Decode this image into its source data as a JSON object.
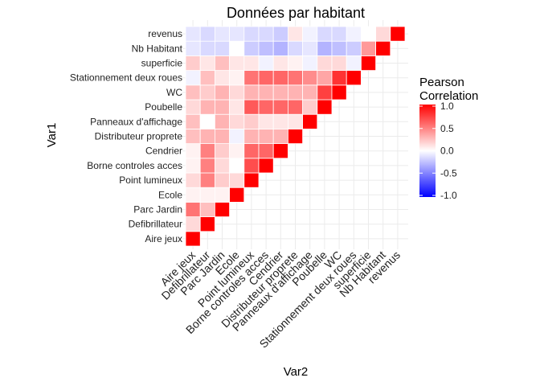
{
  "chart_data": {
    "type": "heatmap",
    "title": "Données par habitant",
    "xlabel": "Var2",
    "ylabel": "Var1",
    "variables": [
      "Aire jeux",
      "Defibrillateur",
      "Parc Jardin",
      "Ecole",
      "Point lumineux",
      "Borne controles acces",
      "Cendrier",
      "Distributeur proprete",
      "Panneaux d'affichage",
      "Poubelle",
      "WC",
      "Stationnement deux roues",
      "superficie",
      "Nb Habitant",
      "revenus"
    ],
    "legend_title": [
      "Pearson",
      "Correlation"
    ],
    "legend_ticks": [
      1.0,
      0.5,
      0.0,
      -0.5,
      -1.0
    ],
    "legend_tick_labels": [
      "1.0",
      "0.5",
      "0.0",
      "-0.5",
      "-1.0"
    ],
    "color_scale": {
      "low": "#0000ff",
      "mid": "#ffffff",
      "high": "#ff0000",
      "limits": [
        -1,
        1
      ]
    },
    "grid": true,
    "matrix": [
      [
        1.0,
        0.15,
        0.55,
        0.05,
        0.15,
        0.05,
        0.05,
        0.25,
        0.25,
        0.15,
        0.25,
        -0.05,
        0.2,
        -0.1,
        -0.1
      ],
      [
        null,
        1.0,
        0.25,
        0.05,
        0.5,
        0.5,
        0.5,
        0.3,
        0.0,
        0.3,
        0.2,
        0.25,
        0.1,
        -0.15,
        -0.15
      ],
      [
        null,
        null,
        1.0,
        0.05,
        0.2,
        0.15,
        0.2,
        0.3,
        0.3,
        0.3,
        0.3,
        0.1,
        0.25,
        -0.15,
        -0.1
      ],
      [
        null,
        null,
        null,
        1.0,
        0.15,
        0.0,
        0.05,
        -0.05,
        0.15,
        0.1,
        0.15,
        0.05,
        0.1,
        0.0,
        -0.1
      ],
      [
        null,
        null,
        null,
        null,
        1.0,
        0.7,
        0.6,
        0.3,
        0.2,
        0.65,
        0.3,
        0.55,
        0.1,
        -0.2,
        -0.15
      ],
      [
        null,
        null,
        null,
        null,
        null,
        1.0,
        0.6,
        0.3,
        0.1,
        0.6,
        0.3,
        0.6,
        -0.05,
        -0.25,
        -0.15
      ],
      [
        null,
        null,
        null,
        null,
        null,
        null,
        1.0,
        0.3,
        0.1,
        0.6,
        0.3,
        0.6,
        0.1,
        -0.3,
        -0.2
      ],
      [
        null,
        null,
        null,
        null,
        null,
        null,
        null,
        1.0,
        0.1,
        0.6,
        0.3,
        0.55,
        0.05,
        -0.15,
        0.1
      ],
      [
        null,
        null,
        null,
        null,
        null,
        null,
        null,
        null,
        1.0,
        0.2,
        0.3,
        0.45,
        -0.05,
        -0.1,
        -0.05
      ],
      [
        null,
        null,
        null,
        null,
        null,
        null,
        null,
        null,
        null,
        1.0,
        0.75,
        0.35,
        0.15,
        -0.3,
        -0.15
      ],
      [
        null,
        null,
        null,
        null,
        null,
        null,
        null,
        null,
        null,
        null,
        1.0,
        0.8,
        0.15,
        -0.25,
        -0.15
      ],
      [
        null,
        null,
        null,
        null,
        null,
        null,
        null,
        null,
        null,
        null,
        null,
        1.0,
        -0.05,
        -0.2,
        -0.05
      ],
      [
        null,
        null,
        null,
        null,
        null,
        null,
        null,
        null,
        null,
        null,
        null,
        null,
        1.0,
        0.4,
        0.0
      ],
      [
        null,
        null,
        null,
        null,
        null,
        null,
        null,
        null,
        null,
        null,
        null,
        null,
        null,
        1.0,
        0.15
      ],
      [
        null,
        null,
        null,
        null,
        null,
        null,
        null,
        null,
        null,
        null,
        null,
        null,
        null,
        null,
        1.0
      ]
    ]
  }
}
